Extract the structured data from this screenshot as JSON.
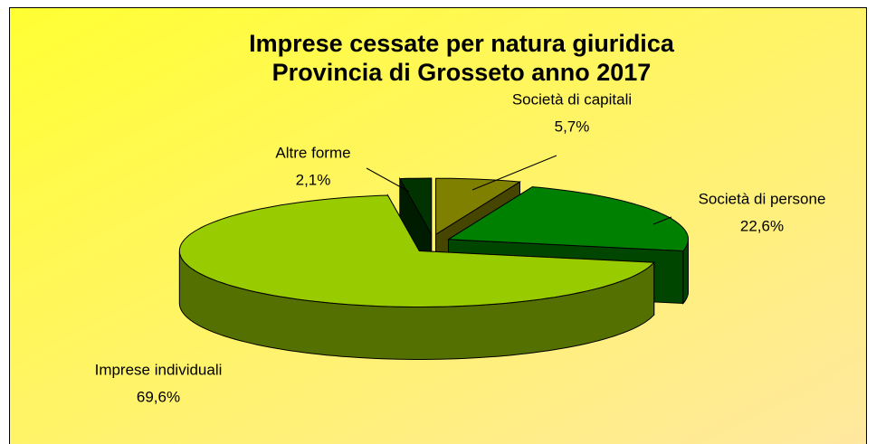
{
  "chart_data": {
    "type": "pie3d",
    "title": "Imprese cessate per natura giuridica",
    "subtitle": "Provincia di Grosseto anno 2017",
    "categories": [
      "Società di capitali",
      "Società di persone",
      "Imprese individuali",
      "Altre forme"
    ],
    "values": [
      5.7,
      22.6,
      69.6,
      2.1
    ],
    "value_labels": [
      "5,7%",
      "22,6%",
      "69,6%",
      "2,1%"
    ],
    "colors": [
      "#808000",
      "#008000",
      "#99cc00",
      "#003300"
    ]
  }
}
